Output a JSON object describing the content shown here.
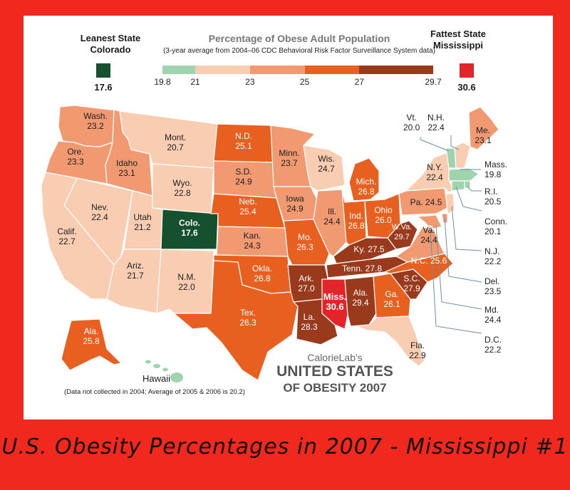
{
  "legend": {
    "title": "Percentage of Obese Adult Population",
    "subtitle": "(3-year average from 2004–06 CDC Behavioral Risk Factor Surveillance System data)",
    "leanest_heading": "Leanest State",
    "leanest_state": "Colorado",
    "leanest_value": "17.6",
    "fattest_heading": "Fattest State",
    "fattest_state": "Mississippi",
    "fattest_value": "30.6",
    "ticks": [
      "19.8",
      "21",
      "23",
      "25",
      "27",
      "29.7"
    ],
    "bins": [
      {
        "from": 19.8,
        "to": 21,
        "color": "#9fd4ae"
      },
      {
        "from": 21,
        "to": 23,
        "color": "#f8cdb2"
      },
      {
        "from": 23,
        "to": 25,
        "color": "#f19a72"
      },
      {
        "from": 25,
        "to": 27,
        "color": "#e8601f"
      },
      {
        "from": 27,
        "to": 29.7,
        "color": "#9a3a1c"
      }
    ],
    "leanest_color": "#15512f",
    "fattest_color": "#e4242b"
  },
  "states": {
    "wa": {
      "name": "Wash.",
      "value": "23.2"
    },
    "or": {
      "name": "Ore.",
      "value": "23.3"
    },
    "id": {
      "name": "Idaho",
      "value": "23.1"
    },
    "mt": {
      "name": "Mont.",
      "value": "20.7"
    },
    "wy": {
      "name": "Wyo.",
      "value": "22.8"
    },
    "nv": {
      "name": "Nev.",
      "value": "22.4"
    },
    "ca": {
      "name": "Calif.",
      "value": "22.7"
    },
    "ut": {
      "name": "Utah",
      "value": "21.2"
    },
    "co": {
      "name": "Colo.",
      "value": "17.6"
    },
    "az": {
      "name": "Ariz.",
      "value": "21.7"
    },
    "nm": {
      "name": "N.M.",
      "value": "22.0"
    },
    "nd": {
      "name": "N.D.",
      "value": "25.1"
    },
    "sd": {
      "name": "S.D.",
      "value": "24.9"
    },
    "ne": {
      "name": "Neb.",
      "value": "25.4"
    },
    "ks": {
      "name": "Kan.",
      "value": "24.3"
    },
    "ok": {
      "name": "Okla.",
      "value": "26.8"
    },
    "tx": {
      "name": "Tex.",
      "value": "26.3"
    },
    "mn": {
      "name": "Minn.",
      "value": "23.7"
    },
    "ia": {
      "name": "Iowa",
      "value": "24.9"
    },
    "mo": {
      "name": "Mo.",
      "value": "26.3"
    },
    "ar": {
      "name": "Ark.",
      "value": "27.0"
    },
    "la": {
      "name": "La.",
      "value": "28.3"
    },
    "wi": {
      "name": "Wis.",
      "value": "24.7"
    },
    "il": {
      "name": "Ill.",
      "value": "24.4"
    },
    "mi": {
      "name": "Mich.",
      "value": "26.8"
    },
    "in": {
      "name": "Ind.",
      "value": "26.8"
    },
    "oh": {
      "name": "Ohio",
      "value": "26.0"
    },
    "ky": {
      "name": "Ky.",
      "value": "27.5"
    },
    "tn": {
      "name": "Tenn.",
      "value": "27.8"
    },
    "ms": {
      "name": "Miss.",
      "value": "30.6"
    },
    "al": {
      "name": "Ala.",
      "value": "29.4"
    },
    "ga": {
      "name": "Ga.",
      "value": "26.1"
    },
    "fl": {
      "name": "Fla.",
      "value": "22.9"
    },
    "sc": {
      "name": "S.C.",
      "value": "27.9"
    },
    "nc": {
      "name": "N.C.",
      "value": "25.6"
    },
    "va": {
      "name": "Va.",
      "value": "24.4"
    },
    "wv": {
      "name": "W.Va.",
      "value": "29.7"
    },
    "pa": {
      "name": "Pa.",
      "value": "24.5"
    },
    "ny": {
      "name": "N.Y.",
      "value": "22.4"
    },
    "me": {
      "name": "Me.",
      "value": "23.1"
    },
    "ak": {
      "name": "Ala.",
      "value": "25.8"
    },
    "vt": {
      "name": "Vt.",
      "value": "20.0"
    },
    "nh": {
      "name": "N.H.",
      "value": "22.4"
    },
    "ma": {
      "name": "Mass.",
      "value": "19.8"
    },
    "ri": {
      "name": "R.I.",
      "value": "20.5"
    },
    "ct": {
      "name": "Conn.",
      "value": "20.1"
    },
    "nj": {
      "name": "N.J.",
      "value": "22.2"
    },
    "de": {
      "name": "Del.",
      "value": "23.5"
    },
    "md": {
      "name": "Md.",
      "value": "24.4"
    },
    "dc": {
      "name": "D.C.",
      "value": "22.2"
    }
  },
  "hawaii": {
    "name": "Hawaii",
    "note": "(Data not collected in 2004; Average of 2005 & 2006 is 20.2)"
  },
  "branding": {
    "brand": "CalorieLab's",
    "title_line1": "UNITED STATES",
    "title_line2": "OF OBESITY 2007"
  },
  "caption": "U.S. Obesity Percentages in 2007 - Mississippi #1"
}
